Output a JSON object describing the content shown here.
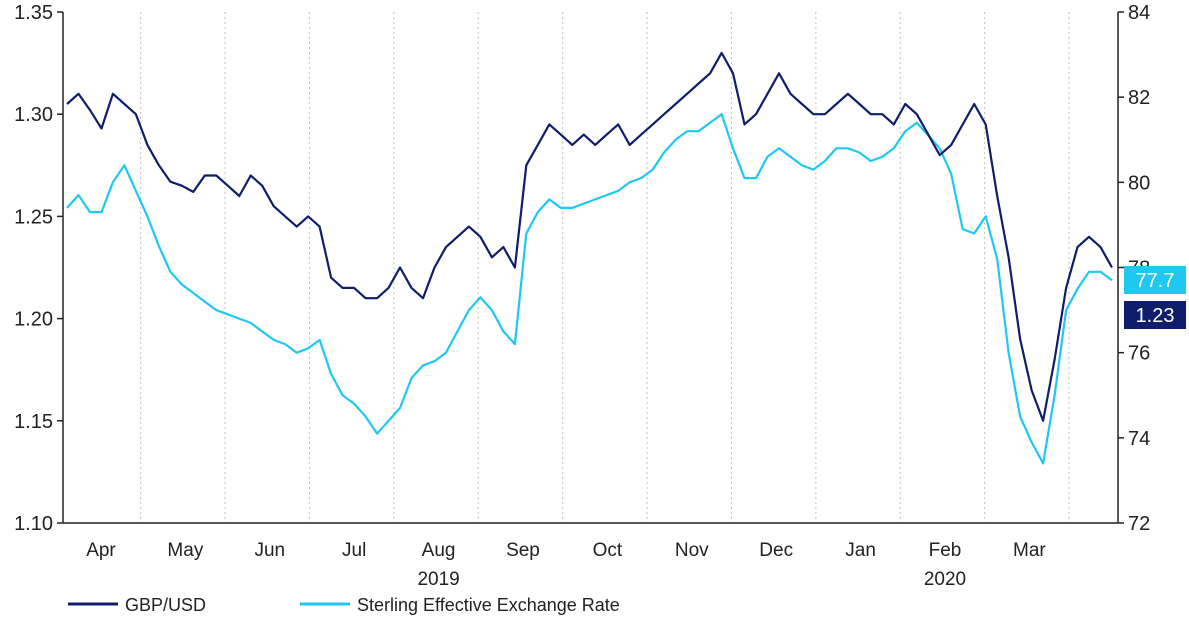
{
  "chart_data": {
    "type": "line",
    "x_unit": "week",
    "left_axis": {
      "ylim": [
        1.1,
        1.35
      ],
      "ticks": [
        "1.10",
        "1.15",
        "1.20",
        "1.25",
        "1.30",
        "1.35"
      ]
    },
    "right_axis": {
      "ylim": [
        72,
        84
      ],
      "ticks": [
        "72",
        "74",
        "76",
        "78",
        "80",
        "82",
        "84"
      ]
    },
    "months": [
      "Apr",
      "May",
      "Jun",
      "Jul",
      "Aug",
      "Sep",
      "Oct",
      "Nov",
      "Dec",
      "Jan",
      "Feb",
      "Mar"
    ],
    "years": [
      {
        "label": "2019",
        "month_index": 4
      },
      {
        "label": "2020",
        "month_index": 10
      }
    ],
    "series": [
      {
        "name": "GBP/USD",
        "axis": "left",
        "color": "#0f1d6b",
        "end_label": "1.23",
        "values": [
          1.305,
          1.31,
          1.302,
          1.293,
          1.31,
          1.305,
          1.3,
          1.285,
          1.275,
          1.267,
          1.265,
          1.262,
          1.27,
          1.27,
          1.265,
          1.26,
          1.27,
          1.265,
          1.255,
          1.25,
          1.245,
          1.25,
          1.245,
          1.22,
          1.215,
          1.215,
          1.21,
          1.21,
          1.215,
          1.225,
          1.215,
          1.21,
          1.225,
          1.235,
          1.24,
          1.245,
          1.24,
          1.23,
          1.235,
          1.225,
          1.275,
          1.285,
          1.295,
          1.29,
          1.285,
          1.29,
          1.285,
          1.29,
          1.295,
          1.285,
          1.29,
          1.295,
          1.3,
          1.305,
          1.31,
          1.315,
          1.32,
          1.33,
          1.32,
          1.295,
          1.3,
          1.31,
          1.32,
          1.31,
          1.305,
          1.3,
          1.3,
          1.305,
          1.31,
          1.305,
          1.3,
          1.3,
          1.295,
          1.305,
          1.3,
          1.29,
          1.28,
          1.285,
          1.295,
          1.305,
          1.295,
          1.26,
          1.23,
          1.19,
          1.165,
          1.15,
          1.18,
          1.215,
          1.235,
          1.24,
          1.235,
          1.225
        ]
      },
      {
        "name": "Sterling Effective Exchange Rate",
        "axis": "right",
        "color": "#1ec8f0",
        "end_label": "77.7",
        "values": [
          79.4,
          79.7,
          79.3,
          79.3,
          80.0,
          80.4,
          79.8,
          79.2,
          78.5,
          77.9,
          77.6,
          77.4,
          77.2,
          77.0,
          76.9,
          76.8,
          76.7,
          76.5,
          76.3,
          76.2,
          76.0,
          76.1,
          76.3,
          75.5,
          75.0,
          74.8,
          74.5,
          74.1,
          74.4,
          74.7,
          75.4,
          75.7,
          75.8,
          76.0,
          76.5,
          77.0,
          77.3,
          77.0,
          76.5,
          76.2,
          78.8,
          79.3,
          79.6,
          79.4,
          79.4,
          79.5,
          79.6,
          79.7,
          79.8,
          80.0,
          80.1,
          80.3,
          80.7,
          81.0,
          81.2,
          81.2,
          81.4,
          81.6,
          80.8,
          80.1,
          80.1,
          80.6,
          80.8,
          80.6,
          80.4,
          80.3,
          80.5,
          80.8,
          80.8,
          80.7,
          80.5,
          80.6,
          80.8,
          81.2,
          81.4,
          81.1,
          80.8,
          80.2,
          78.9,
          78.8,
          79.2,
          78.2,
          76.0,
          74.5,
          73.9,
          73.4,
          75.0,
          77.0,
          77.5,
          77.9,
          77.9,
          77.7
        ]
      }
    ],
    "grid": "vertical-dashed",
    "legend_position": "bottom-left"
  }
}
